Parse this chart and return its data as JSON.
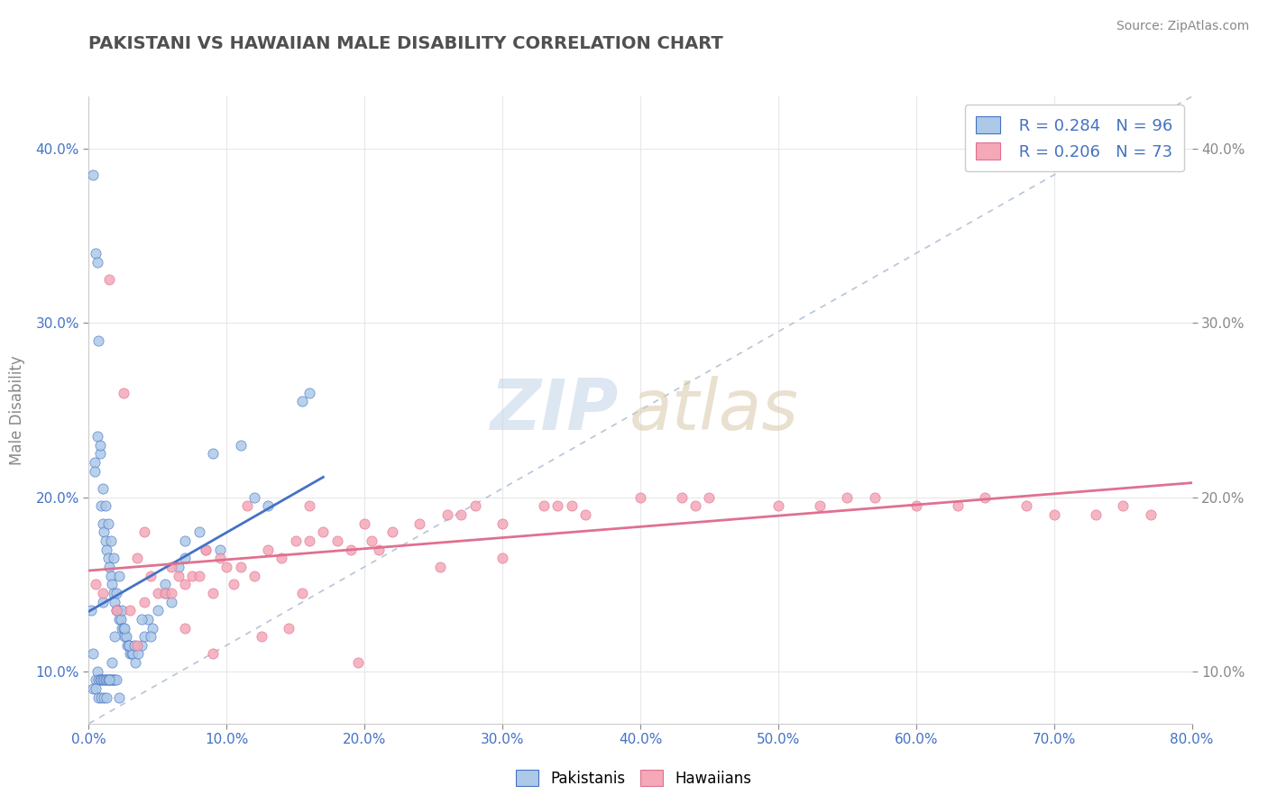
{
  "title": "PAKISTANI VS HAWAIIAN MALE DISABILITY CORRELATION CHART",
  "source": "Source: ZipAtlas.com",
  "ylabel": "Male Disability",
  "xlim": [
    0.0,
    80.0
  ],
  "ylim": [
    7.0,
    43.0
  ],
  "yticks": [
    10.0,
    20.0,
    30.0,
    40.0
  ],
  "xticks": [
    0.0,
    10.0,
    20.0,
    30.0,
    40.0,
    50.0,
    60.0,
    70.0,
    80.0
  ],
  "legend_r1": "R = 0.284",
  "legend_n1": "N = 96",
  "legend_r2": "R = 0.206",
  "legend_n2": "N = 73",
  "pakistani_color": "#adc9e8",
  "hawaiian_color": "#f4a8b8",
  "pakistani_line_color": "#4472c4",
  "hawaiian_line_color": "#e07090",
  "diagonal_color": "#b8c4d8",
  "background_color": "#ffffff",
  "grid_color": "#e8e8e8",
  "title_color": "#505050",
  "axis_label_color": "#4472c4",
  "tick_color": "#888888",
  "pakistani_x": [
    0.2,
    0.3,
    0.3,
    0.4,
    0.5,
    0.5,
    0.6,
    0.6,
    0.7,
    0.7,
    0.8,
    0.8,
    0.9,
    0.9,
    1.0,
    1.0,
    1.0,
    1.1,
    1.1,
    1.2,
    1.2,
    1.3,
    1.3,
    1.4,
    1.4,
    1.5,
    1.5,
    1.6,
    1.6,
    1.7,
    1.7,
    1.8,
    1.8,
    1.9,
    1.9,
    2.0,
    2.0,
    2.1,
    2.2,
    2.3,
    2.4,
    2.5,
    2.6,
    2.7,
    2.8,
    2.9,
    3.0,
    3.1,
    3.2,
    3.4,
    3.6,
    3.8,
    4.0,
    4.3,
    4.6,
    5.0,
    5.5,
    6.0,
    6.5,
    7.0,
    8.0,
    9.5,
    11.0,
    13.0,
    15.5,
    0.4,
    0.6,
    0.8,
    1.0,
    1.2,
    1.4,
    1.6,
    1.8,
    2.0,
    2.2,
    2.4,
    2.6,
    2.9,
    3.3,
    3.8,
    4.5,
    5.5,
    7.0,
    9.0,
    12.0,
    16.0,
    0.3,
    0.5,
    0.7,
    0.9,
    1.1,
    1.3,
    1.5,
    1.7,
    1.9,
    2.2
  ],
  "pakistani_y": [
    13.5,
    38.5,
    11.0,
    22.0,
    34.0,
    9.5,
    33.5,
    10.0,
    29.0,
    9.5,
    22.5,
    9.5,
    19.5,
    9.5,
    18.5,
    14.0,
    9.5,
    18.0,
    9.5,
    17.5,
    9.5,
    17.0,
    9.5,
    16.5,
    9.5,
    16.0,
    9.5,
    15.5,
    9.5,
    15.0,
    9.5,
    14.5,
    9.5,
    14.0,
    9.5,
    13.5,
    9.5,
    13.5,
    13.0,
    13.0,
    12.5,
    12.5,
    12.0,
    12.0,
    11.5,
    11.5,
    11.0,
    11.0,
    11.0,
    10.5,
    11.0,
    11.5,
    12.0,
    13.0,
    12.5,
    13.5,
    15.0,
    14.0,
    16.0,
    16.5,
    18.0,
    17.0,
    23.0,
    19.5,
    25.5,
    21.5,
    23.5,
    23.0,
    20.5,
    19.5,
    18.5,
    17.5,
    16.5,
    14.5,
    15.5,
    13.5,
    12.5,
    11.5,
    11.5,
    13.0,
    12.0,
    14.5,
    17.5,
    22.5,
    20.0,
    26.0,
    9.0,
    9.0,
    8.5,
    8.5,
    8.5,
    8.5,
    9.5,
    10.5,
    12.0,
    8.5
  ],
  "hawaiian_x": [
    0.5,
    1.0,
    1.5,
    2.0,
    2.5,
    3.0,
    3.5,
    4.0,
    4.5,
    5.0,
    5.5,
    6.0,
    6.5,
    7.0,
    7.5,
    8.0,
    8.5,
    9.0,
    9.5,
    10.0,
    11.0,
    12.0,
    13.0,
    14.0,
    15.0,
    16.0,
    17.0,
    18.0,
    19.0,
    20.0,
    22.0,
    24.0,
    26.0,
    28.0,
    30.0,
    33.0,
    36.0,
    40.0,
    44.0,
    50.0,
    55.0,
    60.0,
    65.0,
    70.0,
    75.0,
    3.5,
    6.0,
    9.0,
    12.5,
    16.0,
    21.0,
    27.0,
    35.0,
    45.0,
    57.0,
    68.0,
    77.0,
    4.0,
    7.0,
    10.5,
    14.5,
    19.5,
    25.5,
    34.0,
    43.0,
    53.0,
    63.0,
    73.0,
    8.5,
    11.5,
    15.5,
    20.5,
    30.0
  ],
  "hawaiian_y": [
    15.0,
    14.5,
    32.5,
    13.5,
    26.0,
    13.5,
    16.5,
    14.0,
    15.5,
    14.5,
    14.5,
    14.5,
    15.5,
    15.0,
    15.5,
    15.5,
    17.0,
    14.5,
    16.5,
    16.0,
    16.0,
    15.5,
    17.0,
    16.5,
    17.5,
    17.5,
    18.0,
    17.5,
    17.0,
    18.5,
    18.0,
    18.5,
    19.0,
    19.5,
    18.5,
    19.5,
    19.0,
    20.0,
    19.5,
    19.5,
    20.0,
    19.5,
    20.0,
    19.0,
    19.5,
    11.5,
    16.0,
    11.0,
    12.0,
    19.5,
    17.0,
    19.0,
    19.5,
    20.0,
    20.0,
    19.5,
    19.0,
    18.0,
    12.5,
    15.0,
    12.5,
    10.5,
    16.0,
    19.5,
    20.0,
    19.5,
    19.5,
    19.0,
    17.0,
    19.5,
    14.5,
    17.5,
    16.5
  ]
}
